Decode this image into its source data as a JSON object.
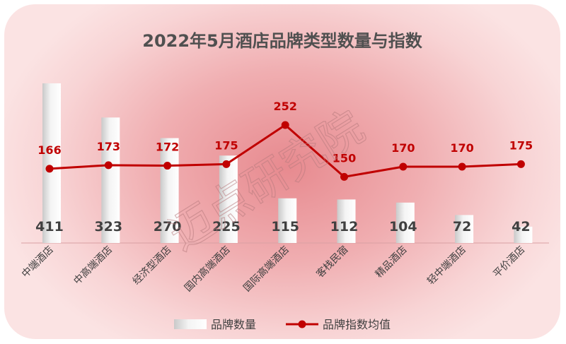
{
  "chart_data": {
    "type": "bar+line",
    "title": "2022年5月酒店品牌类型数量与指数",
    "categories": [
      "中端酒店",
      "中高端酒店",
      "经济型酒店",
      "国内高端酒店",
      "国际高端酒店",
      "客栈民宿",
      "精品酒店",
      "轻中端酒店",
      "平价酒店"
    ],
    "series": [
      {
        "name": "品牌数量",
        "kind": "bar",
        "values": [
          411,
          323,
          270,
          225,
          115,
          112,
          104,
          72,
          42
        ]
      },
      {
        "name": "品牌指数均值",
        "kind": "line",
        "values": [
          166,
          173,
          172,
          175,
          252,
          150,
          170,
          170,
          175
        ]
      }
    ],
    "legend_position": "bottom",
    "grid": false,
    "colors": {
      "bar": "#e6e6e6",
      "line": "#c00000",
      "count_label": "#404040",
      "index_label": "#c00000"
    }
  },
  "watermark": "迈点研究院"
}
